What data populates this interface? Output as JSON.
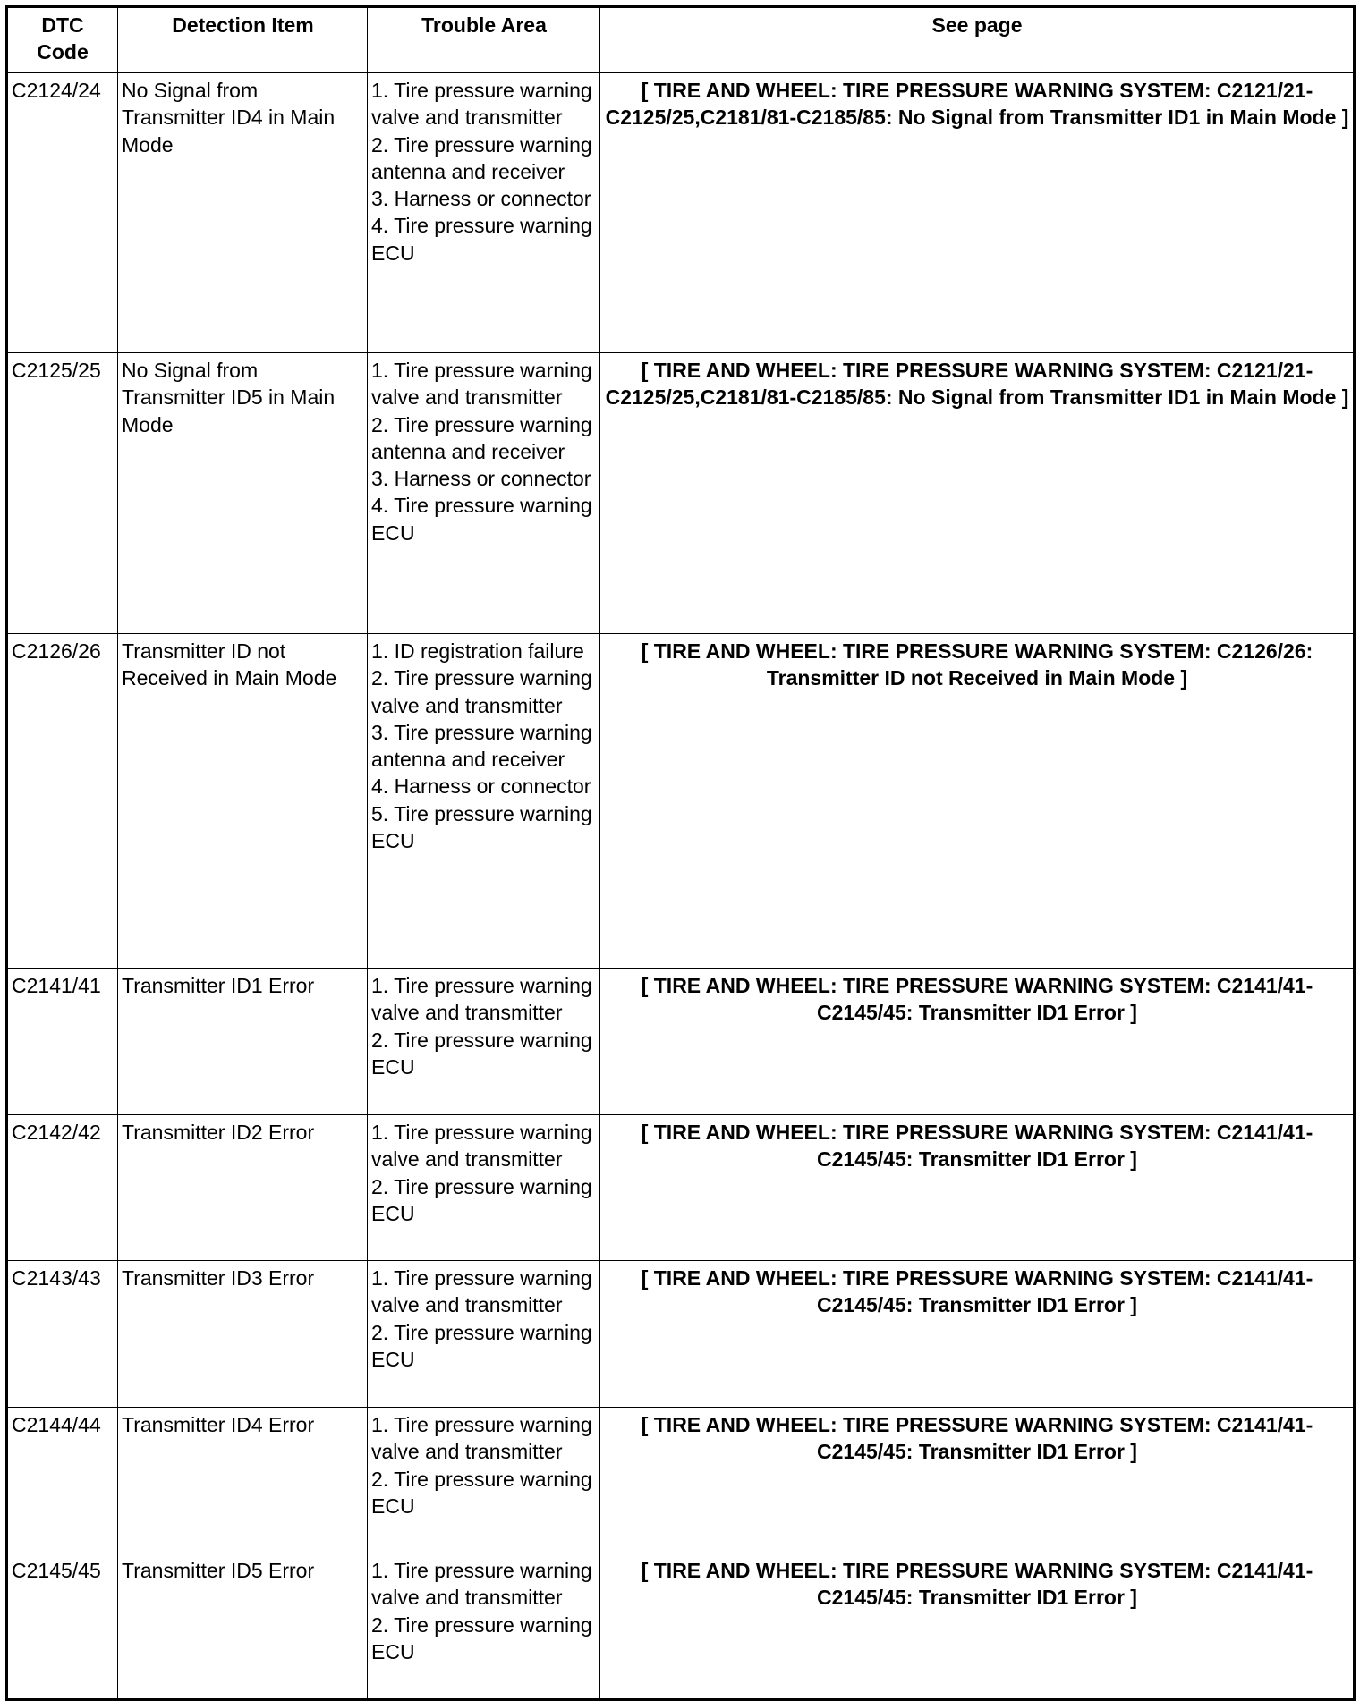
{
  "headers": [
    "DTC Code",
    "Detection Item",
    "Trouble Area",
    "See page"
  ],
  "rows": [
    {
      "code": "C2124/24",
      "item": "No Signal from Transmitter ID4 in Main Mode",
      "areas": [
        "1. Tire pressure warning valve and transmitter",
        "2. Tire pressure warning antenna and receiver",
        "3. Harness or connector",
        "4. Tire pressure warning ECU"
      ],
      "see": "[ TIRE AND WHEEL: TIRE PRESSURE WARNING SYSTEM: C2121/21-C2125/25,C2181/81-C2185/85: No Signal from Transmitter ID1 in Main Mode ]"
    },
    {
      "code": "C2125/25",
      "item": "No Signal from Transmitter ID5 in Main Mode",
      "areas": [
        "1. Tire pressure warning valve and transmitter",
        "2. Tire pressure warning antenna and receiver",
        "3. Harness or connector",
        "4. Tire pressure warning ECU"
      ],
      "see": "[ TIRE AND WHEEL: TIRE PRESSURE WARNING SYSTEM: C2121/21-C2125/25,C2181/81-C2185/85: No Signal from Transmitter ID1 in Main Mode ]"
    },
    {
      "code": "C2126/26",
      "item": "Transmitter ID not Received in Main Mode",
      "areas": [
        "1. ID registration failure",
        "2. Tire pressure warning valve and transmitter",
        "3. Tire pressure warning antenna and receiver",
        "4. Harness or connector",
        "5. Tire pressure warning ECU"
      ],
      "see": "[ TIRE AND WHEEL: TIRE PRESSURE WARNING SYSTEM: C2126/26: Transmitter ID not Received in Main Mode ]"
    },
    {
      "code": "C2141/41",
      "item": "Transmitter ID1 Error",
      "areas": [
        "1. Tire pressure warning valve and transmitter",
        "2. Tire pressure warning ECU"
      ],
      "see": "[ TIRE AND WHEEL: TIRE PRESSURE WARNING SYSTEM: C2141/41-C2145/45: Transmitter ID1 Error ]"
    },
    {
      "code": "C2142/42",
      "item": "Transmitter ID2 Error",
      "areas": [
        "1. Tire pressure warning valve and transmitter",
        "2. Tire pressure warning ECU"
      ],
      "see": "[ TIRE AND WHEEL: TIRE PRESSURE WARNING SYSTEM: C2141/41-C2145/45: Transmitter ID1 Error ]"
    },
    {
      "code": "C2143/43",
      "item": "Transmitter ID3 Error",
      "areas": [
        "1. Tire pressure warning valve and transmitter",
        "2. Tire pressure warning ECU"
      ],
      "see": "[ TIRE AND WHEEL: TIRE PRESSURE WARNING SYSTEM: C2141/41-C2145/45: Transmitter ID1 Error ]"
    },
    {
      "code": "C2144/44",
      "item": "Transmitter ID4 Error",
      "areas": [
        "1. Tire pressure warning valve and transmitter",
        "2. Tire pressure warning ECU"
      ],
      "see": "[ TIRE AND WHEEL: TIRE PRESSURE WARNING SYSTEM: C2141/41-C2145/45: Transmitter ID1 Error ]"
    },
    {
      "code": "C2145/45",
      "item": "Transmitter ID5 Error",
      "areas": [
        "1. Tire pressure warning valve and transmitter",
        "2. Tire pressure warning ECU"
      ],
      "see": "[ TIRE AND WHEEL: TIRE PRESSURE WARNING SYSTEM: C2141/41-C2145/45: Transmitter ID1 Error ]"
    }
  ]
}
